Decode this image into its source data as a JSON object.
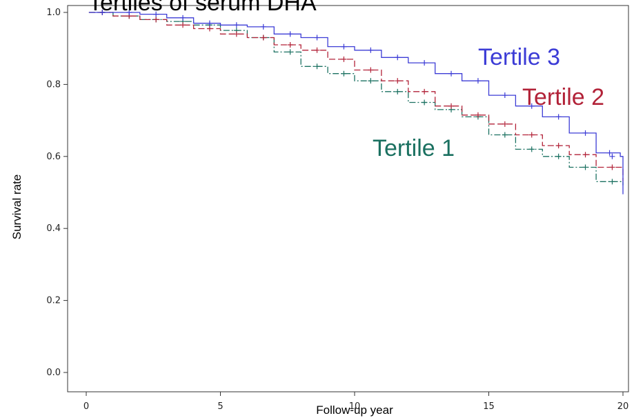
{
  "chart_data": {
    "type": "line",
    "title": "Tertiles of serum DHA",
    "xlabel": "Follow-up year",
    "ylabel": "Survival rate",
    "xlim": [
      0,
      20
    ],
    "ylim": [
      0.0,
      1.0
    ],
    "x_ticks": [
      0,
      5,
      10,
      15,
      20
    ],
    "y_ticks": [
      0.0,
      0.2,
      0.4,
      0.6,
      0.8,
      1.0
    ],
    "x_tick_labels": [
      "0",
      "5",
      "10",
      "15",
      "20"
    ],
    "y_tick_labels": [
      "0.0",
      "0.2",
      "0.4",
      "0.6",
      "0.8",
      "1.0"
    ],
    "grid": false,
    "series": [
      {
        "name": "Tertile 1",
        "color": "#1a7060",
        "dash": "dashdot",
        "points": [
          [
            0.1,
            1.0
          ],
          [
            1.0,
            0.99
          ],
          [
            2.0,
            0.98
          ],
          [
            3.0,
            0.975
          ],
          [
            4.0,
            0.965
          ],
          [
            5.0,
            0.95
          ],
          [
            6.0,
            0.93
          ],
          [
            7.0,
            0.89
          ],
          [
            8.0,
            0.85
          ],
          [
            9.0,
            0.83
          ],
          [
            10.0,
            0.81
          ],
          [
            11.0,
            0.78
          ],
          [
            12.0,
            0.75
          ],
          [
            13.0,
            0.73
          ],
          [
            14.0,
            0.71
          ],
          [
            15.0,
            0.66
          ],
          [
            16.0,
            0.62
          ],
          [
            17.0,
            0.6
          ],
          [
            18.0,
            0.57
          ],
          [
            19.0,
            0.53
          ],
          [
            20.0,
            0.52
          ]
        ]
      },
      {
        "name": "Tertile 2",
        "color": "#b22238",
        "dash": "dash",
        "points": [
          [
            0.1,
            1.0
          ],
          [
            1.0,
            0.99
          ],
          [
            2.0,
            0.98
          ],
          [
            3.0,
            0.965
          ],
          [
            4.0,
            0.955
          ],
          [
            5.0,
            0.94
          ],
          [
            6.0,
            0.93
          ],
          [
            7.0,
            0.91
          ],
          [
            8.0,
            0.895
          ],
          [
            9.0,
            0.87
          ],
          [
            10.0,
            0.84
          ],
          [
            11.0,
            0.81
          ],
          [
            12.0,
            0.78
          ],
          [
            13.0,
            0.74
          ],
          [
            14.0,
            0.715
          ],
          [
            15.0,
            0.69
          ],
          [
            16.0,
            0.66
          ],
          [
            17.0,
            0.63
          ],
          [
            18.0,
            0.605
          ],
          [
            19.0,
            0.57
          ],
          [
            20.0,
            0.53
          ]
        ]
      },
      {
        "name": "Tertile 3",
        "color": "#3c3cd6",
        "dash": "solid",
        "points": [
          [
            0.1,
            1.0
          ],
          [
            1.0,
            1.0
          ],
          [
            2.0,
            0.995
          ],
          [
            3.0,
            0.985
          ],
          [
            4.0,
            0.97
          ],
          [
            5.0,
            0.965
          ],
          [
            6.0,
            0.96
          ],
          [
            7.0,
            0.94
          ],
          [
            8.0,
            0.93
          ],
          [
            9.0,
            0.905
          ],
          [
            10.0,
            0.895
          ],
          [
            11.0,
            0.875
          ],
          [
            12.0,
            0.86
          ],
          [
            13.0,
            0.83
          ],
          [
            14.0,
            0.81
          ],
          [
            15.0,
            0.77
          ],
          [
            16.0,
            0.74
          ],
          [
            17.0,
            0.71
          ],
          [
            18.0,
            0.665
          ],
          [
            19.0,
            0.61
          ],
          [
            19.9,
            0.6
          ],
          [
            20.0,
            0.495
          ]
        ]
      }
    ]
  }
}
